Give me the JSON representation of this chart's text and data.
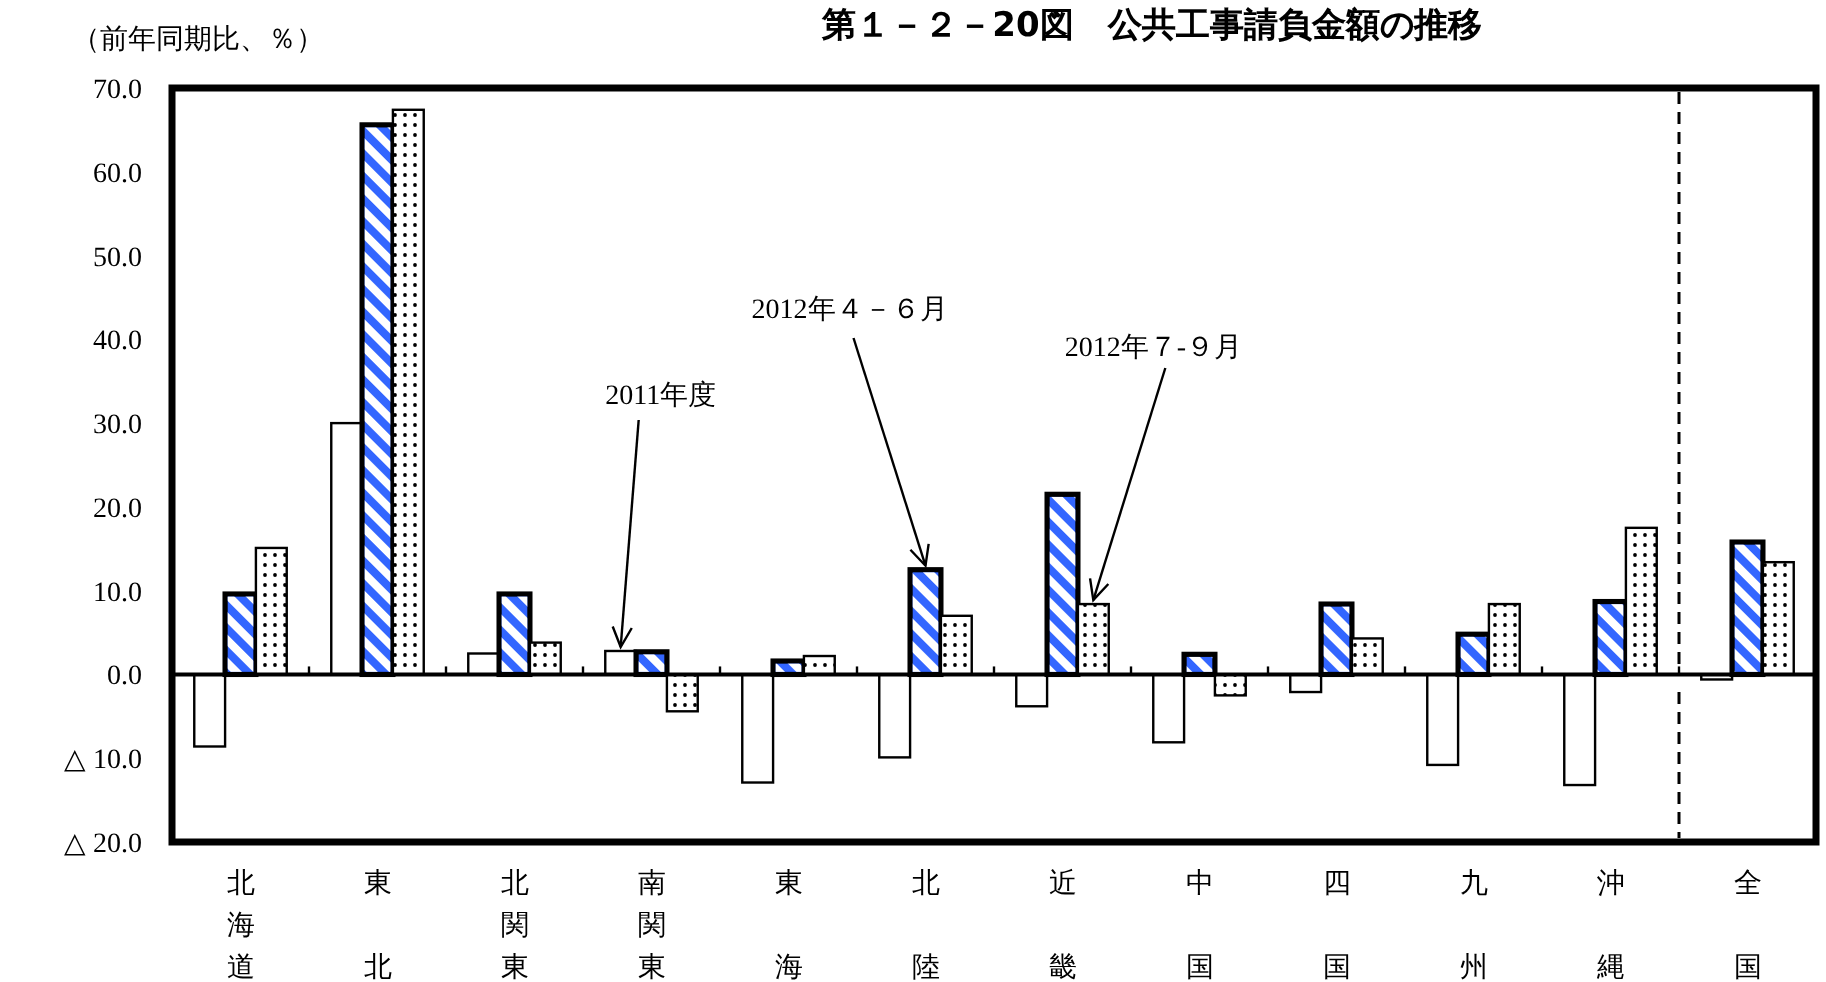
{
  "chart_data": {
    "type": "bar",
    "title": "第１－２－20図　公共工事請負金額の推移",
    "ylabel": "（前年同期比、％）",
    "categories": [
      "北海道",
      "東北",
      "北関東",
      "南関東",
      "東海",
      "北陸",
      "近畿",
      "中国",
      "四国",
      "九州",
      "沖縄",
      "全国"
    ],
    "series": [
      {
        "name": "2011年度",
        "color": "#ffffff",
        "values": [
          -8.6,
          30.0,
          2.5,
          2.8,
          -12.9,
          -9.9,
          -3.8,
          -8.1,
          -2.1,
          -10.8,
          -13.2,
          -0.6
        ]
      },
      {
        "name": "2012年４－６月",
        "color": "#3366ff",
        "values": [
          9.6,
          65.6,
          9.6,
          2.7,
          1.6,
          12.5,
          21.5,
          2.4,
          8.4,
          4.8,
          8.7,
          15.8
        ]
      },
      {
        "name": "2012年７-９月",
        "color": "#000000",
        "values": [
          15.1,
          67.4,
          3.8,
          -4.4,
          2.2,
          7.0,
          8.4,
          -2.5,
          4.3,
          8.4,
          17.5,
          13.4
        ]
      }
    ],
    "ylim": [
      -20,
      70
    ],
    "yticks": [
      {
        "value": -20,
        "label": "△ 20.0"
      },
      {
        "value": -10,
        "label": "△ 10.0"
      },
      {
        "value": 0,
        "label": "0.0"
      },
      {
        "value": 10,
        "label": "10.0"
      },
      {
        "value": 20,
        "label": "20.0"
      },
      {
        "value": 30,
        "label": "30.0"
      },
      {
        "value": 40,
        "label": "40.0"
      },
      {
        "value": 50,
        "label": "50.0"
      },
      {
        "value": 60,
        "label": "60.0"
      },
      {
        "value": 70,
        "label": "70.0"
      }
    ]
  }
}
